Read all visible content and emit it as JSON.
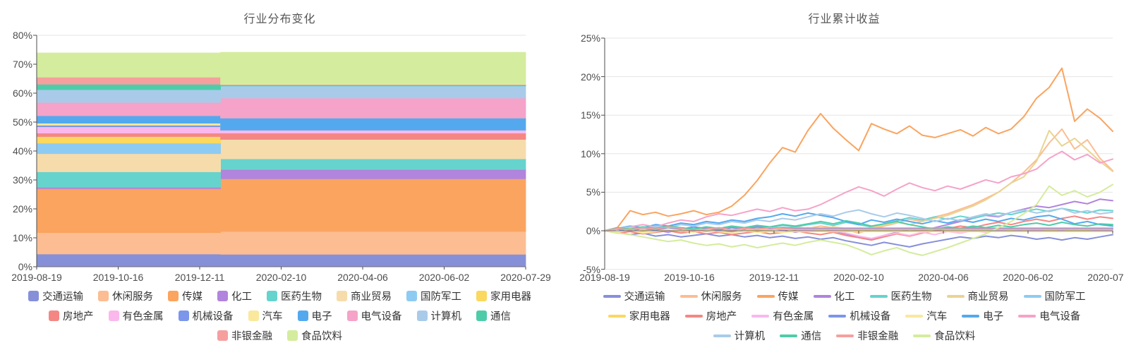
{
  "page": {
    "background": "#ffffff"
  },
  "chart_data": [
    {
      "type": "area-stacked",
      "title": "行业分布变化",
      "ylabel": "",
      "xlabel": "",
      "ylim": [
        0,
        80
      ],
      "grid": true,
      "y_ticks": [
        "80%",
        "70%",
        "60%",
        "50%",
        "40%",
        "30%",
        "20%",
        "10%",
        "0%"
      ],
      "x_ticks": [
        "2019-08-19",
        "2019-10-16",
        "2019-12-11",
        "2020-02-10",
        "2020-04-06",
        "2020-06-02",
        "2020-07-29"
      ],
      "transition_fraction": 0.376,
      "legend_position": "bottom",
      "legend_rows": [
        [
          "transport",
          "leisure-services",
          "media",
          "chemicals",
          "pharma-bio",
          "commerce-trade",
          "defense-military",
          "home-appliances"
        ],
        [
          "real-estate",
          "nonferrous-metals",
          "machinery",
          "automobiles",
          "electronics",
          "electrical-equipment",
          "computers",
          "telecom"
        ],
        [
          "non-bank-finance",
          "food-beverage"
        ]
      ],
      "series": [
        {
          "key": "transport",
          "name": "交通运输",
          "color": "#8690d9",
          "pct_before": 4.4,
          "pct_after": 4.3
        },
        {
          "key": "leisure-services",
          "name": "休闲服务",
          "color": "#fcbd92",
          "pct_before": 7.4,
          "pct_after": 7.9
        },
        {
          "key": "media",
          "name": "传媒",
          "color": "#faa45f",
          "pct_before": 15.2,
          "pct_after": 18.2
        },
        {
          "key": "chemicals",
          "name": "化工",
          "color": "#b184dd",
          "pct_before": 0.5,
          "pct_after": 3.2
        },
        {
          "key": "pharma-bio",
          "name": "医药生物",
          "color": "#66d3cd",
          "pct_before": 5.3,
          "pct_after": 3.7
        },
        {
          "key": "commerce-trade",
          "name": "商业贸易",
          "color": "#f6dcab",
          "pct_before": 6.3,
          "pct_after": 6.7
        },
        {
          "key": "defense-military",
          "name": "国防军工",
          "color": "#8ecbf2",
          "pct_before": 3.6,
          "pct_after": 0
        },
        {
          "key": "home-appliances",
          "name": "家用电器",
          "color": "#fbd85e",
          "pct_before": 2.3,
          "pct_after": 0
        },
        {
          "key": "real-estate",
          "name": "房地产",
          "color": "#f48784",
          "pct_before": 1.2,
          "pct_after": 2.2
        },
        {
          "key": "nonferrous-metals",
          "name": "有色金属",
          "color": "#fbb8ec",
          "pct_before": 2.2,
          "pct_after": 1.0
        },
        {
          "key": "machinery",
          "name": "机械设备",
          "color": "#7b96ea",
          "pct_before": 0.5,
          "pct_after": 0
        },
        {
          "key": "automobiles",
          "name": "汽车",
          "color": "#fae89c",
          "pct_before": 0.7,
          "pct_after": 0
        },
        {
          "key": "electronics",
          "name": "电子",
          "color": "#54a9ee",
          "pct_before": 2.6,
          "pct_after": 4.2
        },
        {
          "key": "electrical-equipment",
          "name": "电气设备",
          "color": "#f5a3c8",
          "pct_before": 4.6,
          "pct_after": 6.9
        },
        {
          "key": "computers",
          "name": "计算机",
          "color": "#a9cbe9",
          "pct_before": 4.4,
          "pct_after": 4.2
        },
        {
          "key": "telecom",
          "name": "通信",
          "color": "#4eccaa",
          "pct_before": 1.9,
          "pct_after": 0.3
        },
        {
          "key": "non-bank-finance",
          "name": "非银金融",
          "color": "#f5a09e",
          "pct_before": 2.4,
          "pct_after": 0.2
        },
        {
          "key": "food-beverage",
          "name": "食品饮料",
          "color": "#d4ec9d",
          "pct_before": 8.4,
          "pct_after": 11.1
        }
      ]
    },
    {
      "type": "line",
      "title": "行业累计收益",
      "ylabel": "",
      "xlabel": "",
      "ylim": [
        -5,
        25
      ],
      "grid": true,
      "y_ticks": [
        "25%",
        "20%",
        "15%",
        "10%",
        "5%",
        "0%",
        "-5%"
      ],
      "x_ticks": [
        "2019-08-19",
        "2019-10-16",
        "2019-12-11",
        "2020-02-10",
        "2020-04-06",
        "2020-06-02",
        "2020-07-29"
      ],
      "points_count": 41,
      "legend_position": "bottom",
      "legend_rows": [
        [
          "transport",
          "leisure-services",
          "media",
          "chemicals",
          "pharma-bio",
          "commerce-trade",
          "defense-military"
        ],
        [
          "home-appliances",
          "real-estate",
          "nonferrous-metals",
          "machinery",
          "automobiles",
          "electronics",
          "electrical-equipment"
        ],
        [
          "computers",
          "telecom",
          "non-bank-finance",
          "food-beverage"
        ]
      ],
      "series": [
        {
          "key": "transport",
          "name": "交通运输",
          "color": "#8690d9",
          "values": [
            0,
            -0.2,
            -0.5,
            -0.3,
            -0.7,
            -0.5,
            -0.8,
            -0.6,
            -0.4,
            -0.7,
            -0.5,
            -0.8,
            -0.6,
            -0.9,
            -0.7,
            -1.0,
            -0.8,
            -1.1,
            -0.9,
            -1.3,
            -1.6,
            -1.9,
            -1.5,
            -1.8,
            -2.1,
            -1.7,
            -1.4,
            -1.1,
            -0.8,
            -1.0,
            -0.7,
            -0.9,
            -0.6,
            -0.8,
            -1.1,
            -0.9,
            -1.2,
            -0.9,
            -1.1,
            -0.8,
            -0.5
          ]
        },
        {
          "key": "leisure-services",
          "name": "休闲服务",
          "color": "#fcbd92",
          "values": [
            0,
            0.3,
            0.1,
            0.4,
            0.2,
            0.5,
            0.3,
            0.1,
            0.4,
            0.2,
            0.5,
            0.3,
            0.6,
            0.4,
            0.2,
            0.5,
            0.3,
            0.6,
            0.4,
            0.1,
            -0.3,
            0.2,
            0.6,
            1.0,
            1.5,
            1.2,
            1.8,
            2.2,
            2.8,
            3.4,
            4.2,
            5.0,
            6.2,
            7.6,
            9.2,
            11.4,
            13.2,
            10.6,
            11.8,
            9.4,
            7.8
          ]
        },
        {
          "key": "media",
          "name": "传媒",
          "color": "#faa45f",
          "values": [
            0,
            0.4,
            2.6,
            2.1,
            2.4,
            1.9,
            2.2,
            2.6,
            2.1,
            2.4,
            3.2,
            4.6,
            6.5,
            8.8,
            10.8,
            10.2,
            13.0,
            15.2,
            13.3,
            11.8,
            10.4,
            13.9,
            13.2,
            12.6,
            13.6,
            12.4,
            12.1,
            12.6,
            13.1,
            12.3,
            13.4,
            12.6,
            13.2,
            14.8,
            17.2,
            18.6,
            21.1,
            14.2,
            15.8,
            14.6,
            12.9
          ]
        },
        {
          "key": "chemicals",
          "name": "化工",
          "color": "#b184dd",
          "values": [
            0,
            0.2,
            -0.1,
            0.3,
            0.1,
            -0.2,
            0.2,
            0,
            0.3,
            0.1,
            -0.1,
            0.2,
            0,
            0.3,
            0.1,
            -0.2,
            0.1,
            0.3,
            0,
            -0.4,
            -0.8,
            -1.1,
            -0.6,
            -0.2,
            0.2,
            0,
            0.4,
            0.8,
            1.2,
            1.6,
            2.0,
            1.8,
            2.4,
            2.8,
            3.2,
            3.0,
            3.4,
            3.8,
            3.5,
            4.1,
            3.9
          ]
        },
        {
          "key": "pharma-bio",
          "name": "医药生物",
          "color": "#66d3cd",
          "values": [
            0,
            0.3,
            0.1,
            0.4,
            0.2,
            0.5,
            0.2,
            0.4,
            0.1,
            0.3,
            0.5,
            0.3,
            0.6,
            0.4,
            0.7,
            0.5,
            0.8,
            1.0,
            0.7,
            1.1,
            0.8,
            0.5,
            0.9,
            1.3,
            1.7,
            1.4,
            1.8,
            1.5,
            1.9,
            1.6,
            2.0,
            2.3,
            2.1,
            2.5,
            2.8,
            2.5,
            2.9,
            2.6,
            2.3,
            2.7,
            2.6
          ]
        },
        {
          "key": "commerce-trade",
          "name": "商业贸易",
          "color": "#e9d492",
          "values": [
            0,
            -0.2,
            0.1,
            -0.1,
            0.2,
            0,
            -0.2,
            0.1,
            -0.1,
            0.2,
            0,
            0.2,
            -0.1,
            0.1,
            0.3,
            0.1,
            0.4,
            0.2,
            0.5,
            0.3,
            0.1,
            0.4,
            0.7,
            1.1,
            0.8,
            1.2,
            1.6,
            2.0,
            2.6,
            3.2,
            4.0,
            5.0,
            6.2,
            7.0,
            9.0,
            13.0,
            11.0,
            12.0,
            10.5,
            9.0,
            7.7
          ]
        },
        {
          "key": "defense-military",
          "name": "国防军工",
          "color": "#8ecbf2",
          "values": [
            0,
            0.3,
            0.1,
            0.4,
            0.2,
            -0.1,
            0.2,
            0.4,
            0.1,
            0.3,
            0.5,
            0.2,
            0.4,
            0.3,
            0.4,
            0.35
          ]
        },
        {
          "key": "home-appliances",
          "name": "家用电器",
          "color": "#fbd85e",
          "values": [
            0,
            0.2,
            0.4,
            0.1,
            0.3,
            0.5,
            0.2,
            0,
            0.3,
            0.1,
            0.4,
            0.2,
            0.1,
            0.3,
            0.2,
            0.15
          ]
        },
        {
          "key": "real-estate",
          "name": "房地产",
          "color": "#f48784",
          "values": [
            0,
            -0.3,
            -0.1,
            -0.4,
            -0.2,
            0,
            -0.3,
            -0.1,
            -0.4,
            -0.2,
            -0.5,
            -0.3,
            -0.1,
            -0.4,
            -0.2,
            0,
            -0.3,
            -0.5,
            -0.2,
            -0.6,
            -0.9,
            -1.2,
            -0.8,
            -0.4,
            -0.7,
            -0.3,
            0,
            0.3,
            0.6,
            0.4,
            0.8,
            1.1,
            0.8,
            1.2,
            1.5,
            1.2,
            1.6,
            1.9,
            1.5,
            1.8,
            1.6
          ]
        },
        {
          "key": "nonferrous-metals",
          "name": "有色金属",
          "color": "#fbb8ec",
          "values": [
            0,
            0.3,
            0.5,
            0.2,
            0.4,
            0.1,
            0.3,
            0,
            0.2,
            0.4,
            0.1,
            0.3,
            0.5,
            0.2,
            0.4,
            0.2,
            0,
            0.3,
            0.1,
            -0.3,
            -0.7,
            -1.0,
            -0.6,
            -0.3,
            -0.6,
            -0.2,
            -0.5,
            -0.1,
            -0.3,
            0,
            -0.2,
            0.1,
            -0.1,
            0.2,
            0,
            0.3,
            0.1,
            0.4,
            0.2,
            0,
            0.1
          ]
        },
        {
          "key": "machinery",
          "name": "机械设备",
          "color": "#7b96ea",
          "values": [
            0,
            0.2,
            0,
            0.3,
            0.1,
            0.4,
            0.2,
            0.5,
            0.3,
            0.1,
            0.4,
            0.2,
            0.5,
            0.3,
            0.4,
            0.28
          ]
        },
        {
          "key": "automobiles",
          "name": "汽车",
          "color": "#fae89c",
          "values": [
            0,
            -0.2,
            0.1,
            -0.3,
            -0.1,
            0.2,
            0,
            -0.2,
            0.1,
            -0.1,
            -0.3,
            0,
            -0.2,
            -0.1,
            -0.2,
            -0.1
          ]
        },
        {
          "key": "electronics",
          "name": "电子",
          "color": "#54a9ee",
          "values": [
            0,
            0.3,
            0.6,
            0.4,
            0.8,
            0.6,
            1.0,
            0.8,
            1.2,
            1.0,
            1.4,
            1.2,
            1.6,
            1.8,
            2.2,
            1.9,
            2.3,
            2.0,
            1.7,
            1.2,
            0.8,
            1.4,
            1.1,
            1.5,
            1.2,
            0.9,
            1.3,
            1.0,
            1.4,
            1.1,
            1.5,
            1.2,
            1.6,
            1.4,
            1.8,
            2.0,
            1.5,
            0.9,
            1.2,
            0.8,
            0.6
          ]
        },
        {
          "key": "electrical-equipment",
          "name": "电气设备",
          "color": "#f5a3c8",
          "values": [
            0,
            0.2,
            0.5,
            0.8,
            0.5,
            1.0,
            1.4,
            1.2,
            1.8,
            2.2,
            2.0,
            2.4,
            2.8,
            2.5,
            3.0,
            2.6,
            2.8,
            3.4,
            4.2,
            5.0,
            5.7,
            5.2,
            4.5,
            5.4,
            6.2,
            5.6,
            5.2,
            5.8,
            5.4,
            6.0,
            6.6,
            6.2,
            7.0,
            7.4,
            8.0,
            9.4,
            10.3,
            9.2,
            9.9,
            8.8,
            9.3
          ]
        },
        {
          "key": "computers",
          "name": "计算机",
          "color": "#a9cbe9",
          "values": [
            0,
            0.3,
            0.5,
            0.2,
            0.6,
            0.4,
            0.8,
            0.6,
            1.0,
            0.8,
            1.2,
            1.0,
            1.4,
            1.2,
            1.6,
            1.4,
            1.8,
            2.2,
            1.9,
            2.4,
            2.7,
            2.2,
            1.8,
            2.3,
            2.0,
            1.6,
            1.2,
            1.6,
            1.3,
            1.8,
            2.2,
            1.9,
            2.4,
            2.7,
            2.3,
            2.6,
            2.9,
            2.3,
            2.6,
            2.2,
            2.4
          ]
        },
        {
          "key": "telecom",
          "name": "通信",
          "color": "#4eccaa",
          "values": [
            0,
            0.4,
            0.2,
            0.5,
            0.3,
            0.6,
            0.4,
            0.2,
            0.5,
            0.3,
            0.6,
            0.4,
            0.7,
            0.5,
            0.8,
            0.6,
            0.9,
            1.2,
            0.9,
            1.3,
            1.0,
            0.6,
            0.9,
            1.2,
            0.8,
            0.5,
            0.2,
            0.5,
            0.3,
            0.6,
            0.4,
            0.7,
            0.5,
            0.8,
            1.0,
            0.7,
            1.1,
            0.8,
            0.6,
            0.9,
            0.8
          ]
        },
        {
          "key": "non-bank-finance",
          "name": "非银金融",
          "color": "#f5a09e",
          "values": [
            0,
            0.3,
            0.1,
            0.4,
            0.2,
            0.5,
            0.3,
            0,
            0.2,
            0.4,
            0.1,
            0.3,
            0.2,
            0.4,
            0.3,
            0.2
          ]
        },
        {
          "key": "food-beverage",
          "name": "食品饮料",
          "color": "#d4ec9d",
          "values": [
            0,
            -0.3,
            -0.5,
            -0.8,
            -1.1,
            -1.4,
            -1.2,
            -1.6,
            -1.9,
            -1.7,
            -2.1,
            -1.8,
            -2.2,
            -1.9,
            -1.6,
            -1.9,
            -1.5,
            -1.2,
            -1.5,
            -1.8,
            -2.4,
            -3.1,
            -2.6,
            -2.2,
            -2.8,
            -3.2,
            -2.7,
            -2.2,
            -1.6,
            -1.0,
            -0.4,
            0.4,
            1.2,
            2.2,
            3.4,
            5.8,
            4.6,
            5.2,
            4.4,
            5.0,
            6.0
          ]
        }
      ]
    }
  ]
}
